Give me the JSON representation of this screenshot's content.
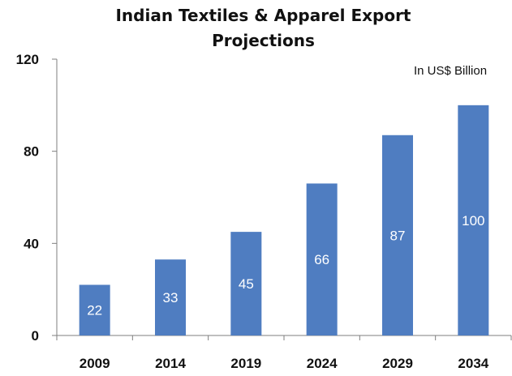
{
  "chart_data": {
    "type": "bar",
    "title": "Indian Textiles & Apparel Export Projections",
    "unit_note": "In US$  Billion",
    "categories": [
      "2009",
      "2014",
      "2019",
      "2024",
      "2029",
      "2034"
    ],
    "values": [
      22,
      33,
      45,
      66,
      87,
      100
    ],
    "data_labels": [
      "22",
      "33",
      "45",
      "66",
      "87",
      "100"
    ],
    "y_ticks": [
      0,
      40,
      80,
      120
    ],
    "y_tick_labels": [
      "0",
      "40",
      "80",
      "120"
    ],
    "ylim": [
      0,
      120
    ],
    "xlabel": "",
    "ylabel": "",
    "grid": false,
    "legend": "none",
    "bar_color": "#4F7DC1",
    "axis_color": "#7f7f7f"
  }
}
